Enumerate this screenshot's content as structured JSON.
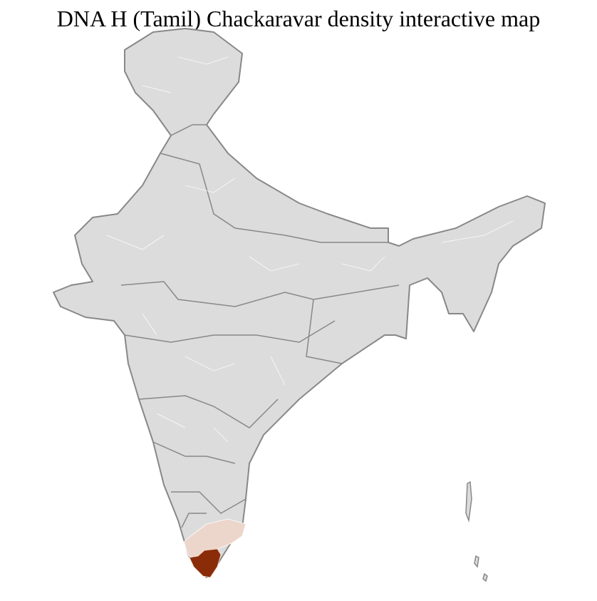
{
  "title": "DNA H (Tamil) Chackaravar density interactive map",
  "colors": {
    "background_region": "#dcdcdc",
    "state_border": "#888888",
    "district_border": "#ffffff",
    "low_density": "#ecd6cb",
    "high_density": "#8a2c08"
  }
}
